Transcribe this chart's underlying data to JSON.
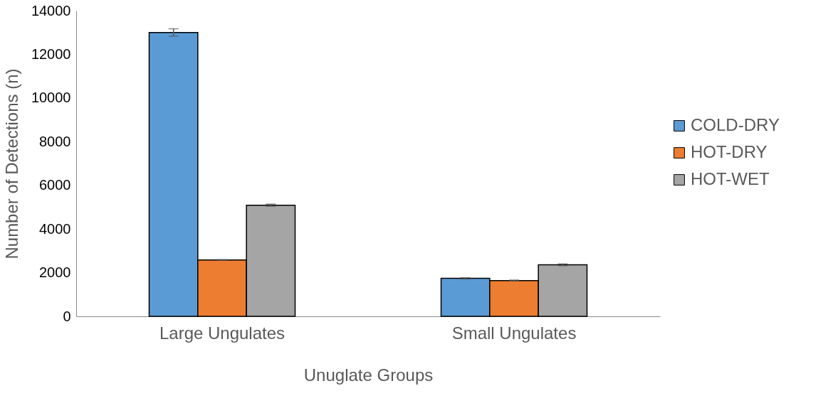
{
  "chart_data": {
    "type": "bar",
    "xlabel": "Unuglate Groups",
    "ylabel": "Number of Detections (n)",
    "categories": [
      "Large Ungulates",
      "Small Ungulates"
    ],
    "series": [
      {
        "name": "COLD-DRY",
        "color": "#5b9bd5",
        "values": [
          13000,
          1740
        ],
        "errors": [
          170,
          30
        ]
      },
      {
        "name": "HOT-DRY",
        "color": "#ed7d31",
        "values": [
          2580,
          1640
        ],
        "errors": [
          20,
          20
        ]
      },
      {
        "name": "HOT-WET",
        "color": "#a5a5a5",
        "values": [
          5090,
          2360
        ],
        "errors": [
          50,
          40
        ]
      }
    ],
    "ylim": [
      0,
      14000
    ],
    "yticks": [
      0,
      2000,
      4000,
      6000,
      8000,
      10000,
      12000,
      14000
    ],
    "grid": false,
    "legend": "right"
  }
}
